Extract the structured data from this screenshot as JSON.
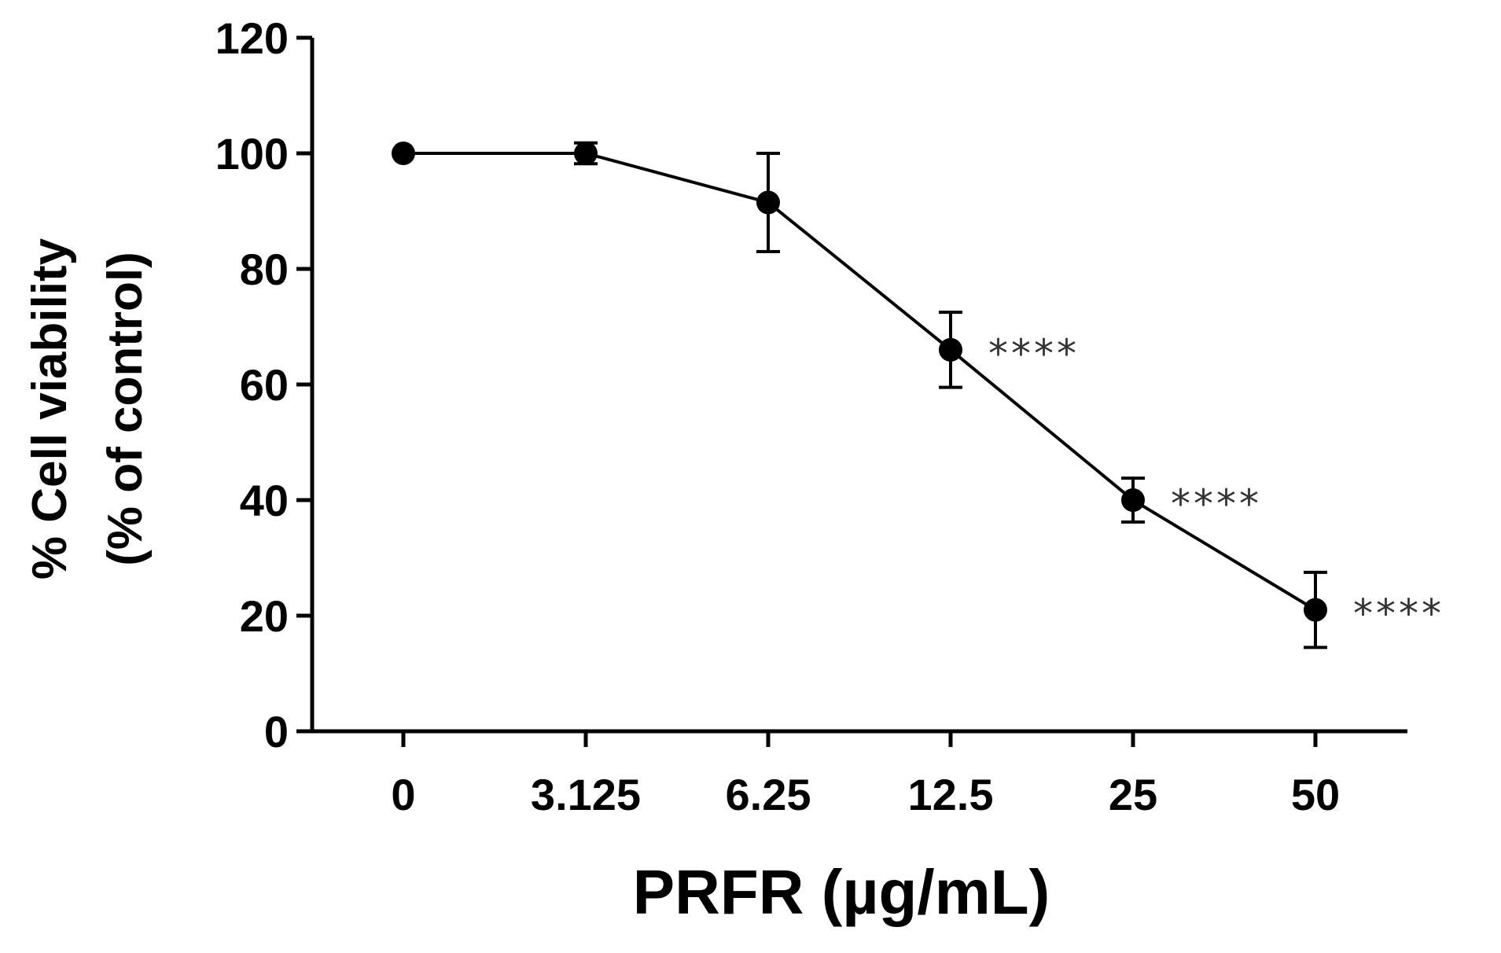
{
  "chart_data": {
    "type": "line",
    "title": "",
    "xlabel": "PRFR (µg/mL)",
    "ylabel_line1": "% Cell viability",
    "ylabel_line2": "(% of control)",
    "categories": [
      "0",
      "3.125",
      "6.25",
      "12.5",
      "25",
      "50"
    ],
    "values": [
      100,
      100,
      91.5,
      66,
      40,
      21
    ],
    "error": [
      0,
      1.8,
      8.5,
      6.5,
      3.8,
      6.5
    ],
    "significance": [
      "",
      "",
      "",
      "****",
      "****",
      "****"
    ],
    "ylim": [
      0,
      120
    ],
    "yticks": [
      0,
      20,
      40,
      60,
      80,
      100,
      120
    ],
    "grid": false,
    "colors": {
      "line": "#000000",
      "marker": "#000000",
      "significance": "#333333"
    }
  }
}
